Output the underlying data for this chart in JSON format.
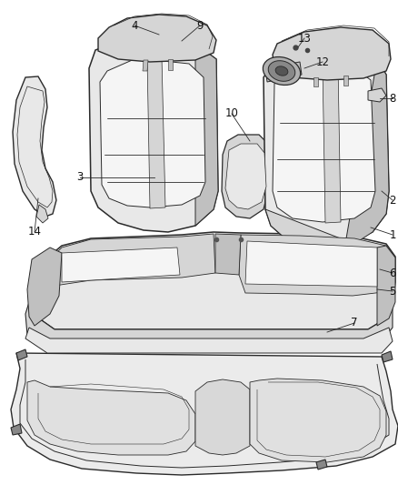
{
  "background_color": "#ffffff",
  "figure_width": 4.38,
  "figure_height": 5.33,
  "dpi": 100,
  "line_color": "#2a2a2a",
  "fill_light": "#e8e8e8",
  "fill_mid": "#d5d5d5",
  "fill_dark": "#c0c0c0",
  "fill_white": "#f5f5f5",
  "label_fontsize": 8.5
}
